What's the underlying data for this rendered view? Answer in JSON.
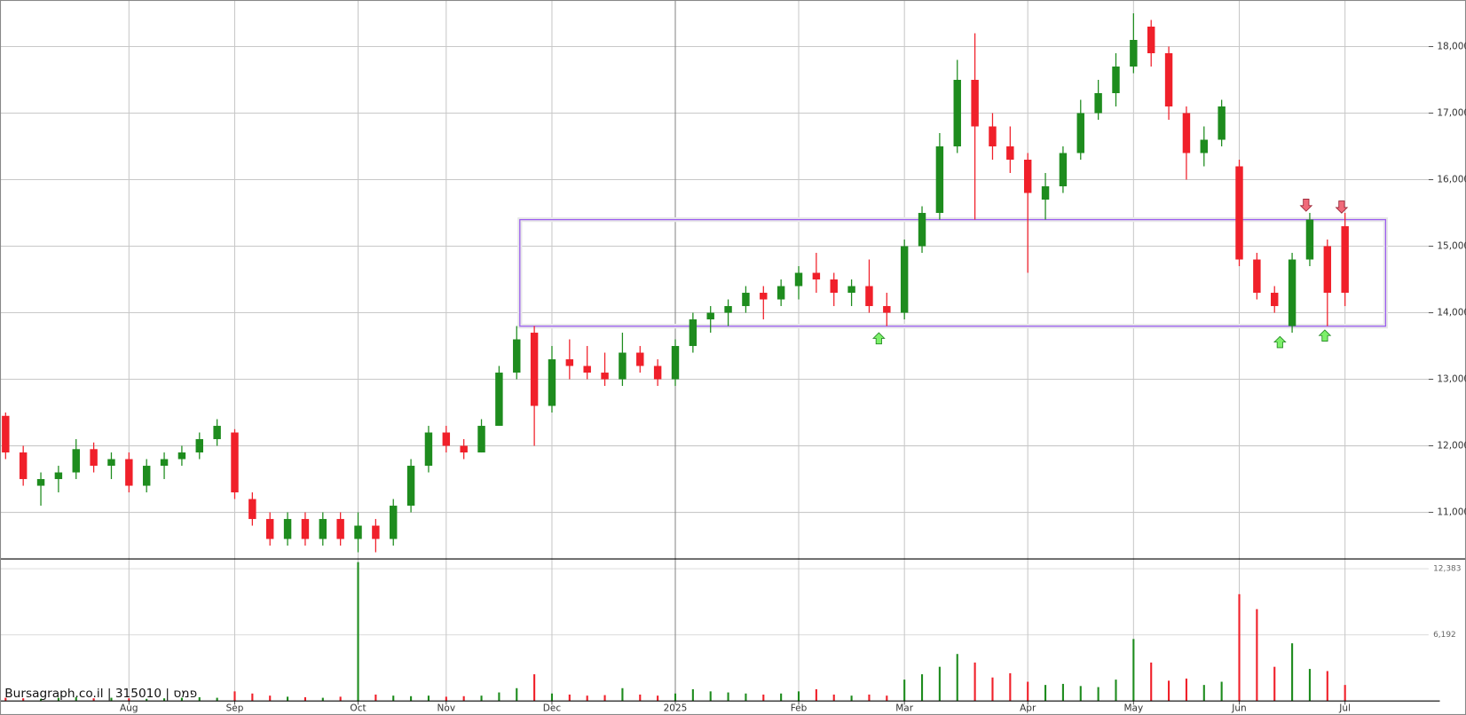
{
  "chart_data": {
    "type": "candlestick",
    "source": "Bursagraph.co.il | 315010 | פמס",
    "categories": [
      null,
      null,
      null,
      null,
      null,
      null,
      null,
      "Aug",
      null,
      null,
      null,
      null,
      null,
      "Sep",
      null,
      null,
      null,
      null,
      null,
      null,
      "Oct",
      null,
      null,
      null,
      null,
      "Nov",
      null,
      null,
      null,
      null,
      null,
      "Dec",
      null,
      null,
      null,
      null,
      null,
      null,
      "2025",
      null,
      null,
      null,
      null,
      null,
      null,
      "Feb",
      null,
      null,
      null,
      null,
      null,
      "Mar",
      null,
      null,
      null,
      null,
      null,
      null,
      "Apr",
      null,
      null,
      null,
      null,
      null,
      "May",
      null,
      null,
      null,
      null,
      null,
      "Jun",
      null,
      null,
      null,
      null,
      null,
      "Jul"
    ],
    "open": [
      12450,
      11900,
      11400,
      11500,
      11600,
      11950,
      11700,
      11800,
      11400,
      11700,
      11800,
      11900,
      12100,
      12200,
      11200,
      10900,
      10600,
      10900,
      10600,
      10900,
      10600,
      10800,
      10600,
      11100,
      11700,
      12200,
      12000,
      11900,
      12300,
      13100,
      13700,
      12600,
      13300,
      13200,
      13100,
      13000,
      13400,
      13200,
      13000,
      13500,
      13900,
      14000,
      14100,
      14300,
      14200,
      14400,
      14600,
      14500,
      14300,
      14400,
      14100,
      14000,
      15000,
      15500,
      16500,
      17500,
      16800,
      16500,
      16300,
      15700,
      15900,
      16400,
      17000,
      17300,
      17700,
      18300,
      17900,
      17000,
      16400,
      16600,
      16200,
      14800,
      14300,
      13800,
      14800,
      15000,
      15300
    ],
    "high": [
      12500,
      12000,
      11600,
      11700,
      12100,
      12050,
      11900,
      11900,
      11800,
      11900,
      12000,
      12200,
      12400,
      12250,
      11300,
      11000,
      11000,
      11000,
      11000,
      11000,
      11000,
      10900,
      11200,
      11800,
      12300,
      12300,
      12100,
      12400,
      13200,
      13800,
      13800,
      13500,
      13600,
      13500,
      13400,
      13700,
      13500,
      13300,
      13600,
      14000,
      14100,
      14200,
      14400,
      14400,
      14500,
      14700,
      14900,
      14600,
      14500,
      14800,
      14300,
      15100,
      15600,
      16700,
      17800,
      18200,
      17000,
      16800,
      16400,
      16100,
      16500,
      17200,
      17500,
      17900,
      18500,
      18400,
      18000,
      17100,
      16800,
      17200,
      16300,
      14900,
      14400,
      14900,
      15500,
      15100,
      15500
    ],
    "low": [
      11800,
      11400,
      11100,
      11300,
      11500,
      11600,
      11500,
      11300,
      11300,
      11500,
      11700,
      11800,
      12000,
      11200,
      10800,
      10500,
      10500,
      10500,
      10500,
      10500,
      10400,
      10400,
      10500,
      11000,
      11600,
      11900,
      11800,
      11900,
      12300,
      13000,
      12000,
      12500,
      13000,
      13000,
      12900,
      12900,
      13100,
      12900,
      12900,
      13400,
      13700,
      13800,
      14000,
      13900,
      14100,
      14200,
      14300,
      14100,
      14100,
      14000,
      13800,
      13900,
      14900,
      15400,
      16400,
      15400,
      16300,
      16100,
      14600,
      15400,
      15800,
      16300,
      16900,
      17100,
      17600,
      17700,
      16900,
      16000,
      16200,
      16500,
      14700,
      14200,
      14000,
      13700,
      14700,
      13800,
      14100
    ],
    "close": [
      11900,
      11500,
      11500,
      11600,
      11950,
      11700,
      11800,
      11400,
      11700,
      11800,
      11900,
      12100,
      12300,
      11300,
      10900,
      10600,
      10900,
      10600,
      10900,
      10600,
      10800,
      10600,
      11100,
      11700,
      12200,
      12000,
      11900,
      12300,
      13100,
      13600,
      12600,
      13300,
      13200,
      13100,
      13000,
      13400,
      13200,
      13000,
      13500,
      13900,
      14000,
      14100,
      14300,
      14200,
      14400,
      14600,
      14500,
      14300,
      14400,
      14100,
      14000,
      15000,
      15500,
      16500,
      17500,
      16800,
      16500,
      16300,
      15800,
      15900,
      16400,
      17000,
      17300,
      17700,
      18100,
      17900,
      17100,
      16400,
      16600,
      17100,
      14800,
      14300,
      14100,
      14800,
      15400,
      14300,
      14300
    ],
    "volume": [
      300,
      250,
      200,
      300,
      350,
      250,
      300,
      250,
      200,
      250,
      300,
      350,
      300,
      900,
      700,
      500,
      400,
      350,
      300,
      400,
      13000,
      600,
      500,
      450,
      500,
      400,
      450,
      500,
      800,
      1200,
      2500,
      700,
      600,
      500,
      550,
      1200,
      600,
      500,
      700,
      1100,
      900,
      800,
      700,
      600,
      700,
      900,
      1100,
      600,
      500,
      600,
      500,
      2000,
      2500,
      3200,
      4400,
      3600,
      2200,
      2600,
      1800,
      1500,
      1600,
      1400,
      1300,
      2000,
      5800,
      3600,
      1900,
      2100,
      1500,
      1800,
      10000,
      8600,
      3200,
      5400,
      3000,
      2800,
      1500
    ],
    "up_color": "#1e8c1e",
    "down_color": "#f0202a",
    "ylim": [
      10300,
      18700
    ],
    "yticks": [
      {
        "value": 11000,
        "label": "11,000"
      },
      {
        "value": 12000,
        "label": "12,000"
      },
      {
        "value": 13000,
        "label": "13,000"
      },
      {
        "value": 14000,
        "label": "14,000"
      },
      {
        "value": 15000,
        "label": "15,000"
      },
      {
        "value": 16000,
        "label": "16,000"
      },
      {
        "value": 17000,
        "label": "17,000"
      },
      {
        "value": 18000,
        "label": "18,000"
      }
    ],
    "volume_ylim": [
      0,
      13300
    ],
    "volume_yticks": [
      {
        "value": 6192,
        "label": "6,192"
      },
      {
        "value": 12383,
        "label": "12,383"
      }
    ],
    "grid": true
  }
}
